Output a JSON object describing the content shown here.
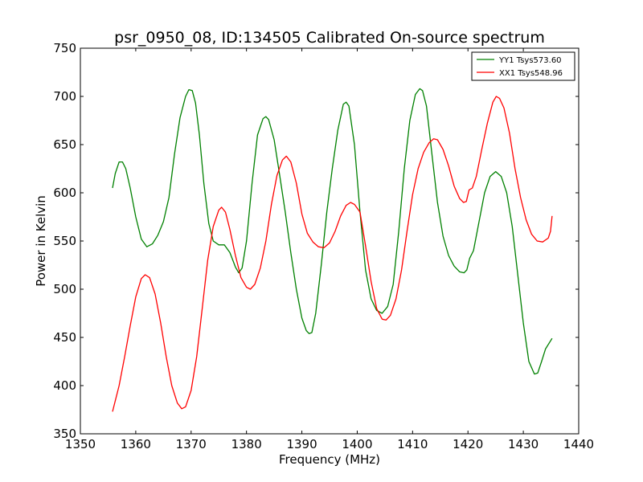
{
  "chart_data": {
    "type": "line",
    "title": "psr_0950_08, ID:134505 Calibrated On-source spectrum",
    "xlabel": "Frequency (MHz)",
    "ylabel": "Power in Kelvin",
    "xlim": [
      1350,
      1440
    ],
    "ylim": [
      350,
      750
    ],
    "xticks": [
      1350,
      1360,
      1370,
      1380,
      1390,
      1400,
      1410,
      1420,
      1430,
      1440
    ],
    "yticks": [
      350,
      400,
      450,
      500,
      550,
      600,
      650,
      700,
      750
    ],
    "grid": false,
    "legend_position": "top-right",
    "series": [
      {
        "name": "YY1 Tsys573.60",
        "color": "#008000",
        "points": [
          [
            1355.8,
            605
          ],
          [
            1356.3,
            620
          ],
          [
            1357.0,
            632
          ],
          [
            1357.6,
            632
          ],
          [
            1358.2,
            625
          ],
          [
            1359.0,
            605
          ],
          [
            1360.0,
            575
          ],
          [
            1361.0,
            552
          ],
          [
            1362.0,
            544
          ],
          [
            1363.0,
            547
          ],
          [
            1364.0,
            556
          ],
          [
            1365.0,
            570
          ],
          [
            1366.0,
            595
          ],
          [
            1367.0,
            640
          ],
          [
            1368.0,
            678
          ],
          [
            1369.0,
            700
          ],
          [
            1369.6,
            707
          ],
          [
            1370.2,
            706
          ],
          [
            1370.8,
            693
          ],
          [
            1371.5,
            660
          ],
          [
            1372.3,
            610
          ],
          [
            1373.2,
            568
          ],
          [
            1374.0,
            550
          ],
          [
            1375.0,
            546
          ],
          [
            1376.0,
            546
          ],
          [
            1377.0,
            538
          ],
          [
            1378.0,
            523
          ],
          [
            1378.6,
            517
          ],
          [
            1379.2,
            522
          ],
          [
            1380.0,
            550
          ],
          [
            1381.0,
            610
          ],
          [
            1382.0,
            660
          ],
          [
            1383.0,
            677
          ],
          [
            1383.5,
            679
          ],
          [
            1384.0,
            676
          ],
          [
            1385.0,
            655
          ],
          [
            1386.0,
            618
          ],
          [
            1387.0,
            580
          ],
          [
            1388.0,
            538
          ],
          [
            1389.0,
            500
          ],
          [
            1390.0,
            470
          ],
          [
            1390.8,
            457
          ],
          [
            1391.3,
            454
          ],
          [
            1391.8,
            455
          ],
          [
            1392.5,
            475
          ],
          [
            1393.5,
            525
          ],
          [
            1394.5,
            580
          ],
          [
            1395.5,
            625
          ],
          [
            1396.5,
            665
          ],
          [
            1397.5,
            692
          ],
          [
            1398.0,
            694
          ],
          [
            1398.5,
            690
          ],
          [
            1399.5,
            650
          ],
          [
            1400.5,
            580
          ],
          [
            1401.5,
            520
          ],
          [
            1402.5,
            490
          ],
          [
            1403.5,
            478
          ],
          [
            1404.5,
            475
          ],
          [
            1405.5,
            482
          ],
          [
            1406.5,
            505
          ],
          [
            1407.5,
            560
          ],
          [
            1408.5,
            625
          ],
          [
            1409.5,
            675
          ],
          [
            1410.5,
            702
          ],
          [
            1411.3,
            708
          ],
          [
            1411.8,
            706
          ],
          [
            1412.5,
            690
          ],
          [
            1413.5,
            640
          ],
          [
            1414.5,
            590
          ],
          [
            1415.5,
            555
          ],
          [
            1416.5,
            535
          ],
          [
            1417.5,
            524
          ],
          [
            1418.5,
            518
          ],
          [
            1419.3,
            517
          ],
          [
            1419.8,
            520
          ],
          [
            1420.3,
            532
          ],
          [
            1421.0,
            540
          ],
          [
            1422.0,
            570
          ],
          [
            1423.0,
            600
          ],
          [
            1424.0,
            617
          ],
          [
            1425.0,
            622
          ],
          [
            1426.0,
            617
          ],
          [
            1427.0,
            600
          ],
          [
            1428.0,
            565
          ],
          [
            1429.0,
            515
          ],
          [
            1430.0,
            465
          ],
          [
            1431.0,
            425
          ],
          [
            1432.0,
            412
          ],
          [
            1432.6,
            413
          ],
          [
            1433.3,
            425
          ],
          [
            1434.0,
            438
          ],
          [
            1435.2,
            449
          ]
        ]
      },
      {
        "name": "XX1 Tsys548.96",
        "color": "#ff0000",
        "points": [
          [
            1355.8,
            373
          ],
          [
            1357.0,
            400
          ],
          [
            1358.0,
            430
          ],
          [
            1359.0,
            462
          ],
          [
            1360.0,
            492
          ],
          [
            1361.0,
            511
          ],
          [
            1361.7,
            515
          ],
          [
            1362.5,
            512
          ],
          [
            1363.5,
            495
          ],
          [
            1364.5,
            465
          ],
          [
            1365.5,
            430
          ],
          [
            1366.5,
            400
          ],
          [
            1367.5,
            382
          ],
          [
            1368.3,
            376
          ],
          [
            1369.0,
            378
          ],
          [
            1370.0,
            395
          ],
          [
            1371.0,
            430
          ],
          [
            1372.0,
            480
          ],
          [
            1373.0,
            530
          ],
          [
            1374.0,
            565
          ],
          [
            1375.0,
            582
          ],
          [
            1375.5,
            585
          ],
          [
            1376.2,
            580
          ],
          [
            1377.0,
            562
          ],
          [
            1378.0,
            535
          ],
          [
            1379.0,
            512
          ],
          [
            1380.0,
            502
          ],
          [
            1380.7,
            500
          ],
          [
            1381.5,
            505
          ],
          [
            1382.5,
            522
          ],
          [
            1383.5,
            550
          ],
          [
            1384.5,
            588
          ],
          [
            1385.5,
            618
          ],
          [
            1386.5,
            634
          ],
          [
            1387.2,
            638
          ],
          [
            1388.0,
            632
          ],
          [
            1389.0,
            610
          ],
          [
            1390.0,
            578
          ],
          [
            1391.0,
            558
          ],
          [
            1392.0,
            549
          ],
          [
            1393.0,
            544
          ],
          [
            1394.0,
            543
          ],
          [
            1395.0,
            548
          ],
          [
            1396.0,
            560
          ],
          [
            1397.0,
            576
          ],
          [
            1398.0,
            587
          ],
          [
            1398.8,
            590
          ],
          [
            1399.5,
            588
          ],
          [
            1400.5,
            580
          ],
          [
            1401.5,
            545
          ],
          [
            1402.5,
            508
          ],
          [
            1403.5,
            480
          ],
          [
            1404.5,
            469
          ],
          [
            1405.2,
            468
          ],
          [
            1406.0,
            473
          ],
          [
            1407.0,
            490
          ],
          [
            1408.0,
            520
          ],
          [
            1409.0,
            560
          ],
          [
            1410.0,
            598
          ],
          [
            1411.0,
            625
          ],
          [
            1412.0,
            642
          ],
          [
            1413.0,
            652
          ],
          [
            1413.8,
            656
          ],
          [
            1414.5,
            655
          ],
          [
            1415.5,
            645
          ],
          [
            1416.5,
            628
          ],
          [
            1417.5,
            607
          ],
          [
            1418.5,
            594
          ],
          [
            1419.2,
            590
          ],
          [
            1419.7,
            591
          ],
          [
            1420.2,
            603
          ],
          [
            1420.8,
            605
          ],
          [
            1421.5,
            617
          ],
          [
            1422.5,
            645
          ],
          [
            1423.5,
            672
          ],
          [
            1424.5,
            694
          ],
          [
            1425.1,
            700
          ],
          [
            1425.7,
            698
          ],
          [
            1426.5,
            688
          ],
          [
            1427.5,
            662
          ],
          [
            1428.5,
            625
          ],
          [
            1429.5,
            595
          ],
          [
            1430.5,
            572
          ],
          [
            1431.5,
            557
          ],
          [
            1432.5,
            550
          ],
          [
            1433.5,
            549
          ],
          [
            1434.5,
            553
          ],
          [
            1434.9,
            560
          ],
          [
            1435.2,
            576
          ]
        ]
      }
    ]
  }
}
